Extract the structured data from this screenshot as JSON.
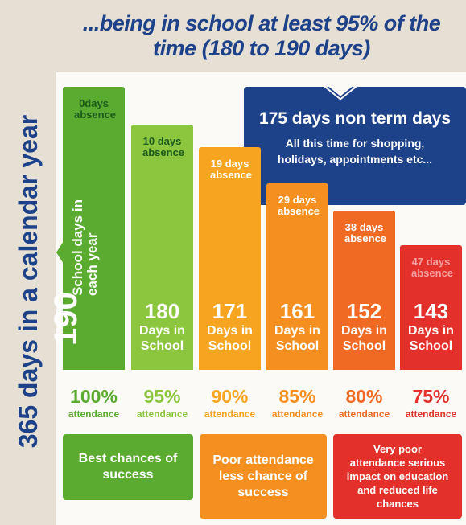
{
  "header": {
    "title": "...being in school at least 95% of the time (180 to 190 days)"
  },
  "side_label": "365 days in a calendar year",
  "callout": {
    "title": "175 days non term days",
    "text": "All this time for shopping, holidays, appointments etc..."
  },
  "columns": [
    {
      "absence": "0days absence",
      "days": "190",
      "label": "School days in each year",
      "percent": "100%",
      "attendance": "attendance"
    },
    {
      "absence": "10 days absence",
      "days": "180",
      "label": "Days in School",
      "percent": "95%",
      "attendance": "attendance"
    },
    {
      "absence": "19 days absence",
      "days": "171",
      "label": "Days in School",
      "percent": "90%",
      "attendance": "attendance"
    },
    {
      "absence": "29 days absence",
      "days": "161",
      "label": "Days in School",
      "percent": "85%",
      "attendance": "attendance"
    },
    {
      "absence": "38 days absence",
      "days": "152",
      "label": "Days in School",
      "percent": "80%",
      "attendance": "attendance"
    },
    {
      "absence": "47 days absence",
      "days": "143",
      "label": "Days in School",
      "percent": "75%",
      "attendance": "attendance"
    }
  ],
  "outcomes": [
    "Best chances of success",
    "Poor attendance less chance of success",
    "Very poor attendance serious impact on education and reduced life chances"
  ]
}
